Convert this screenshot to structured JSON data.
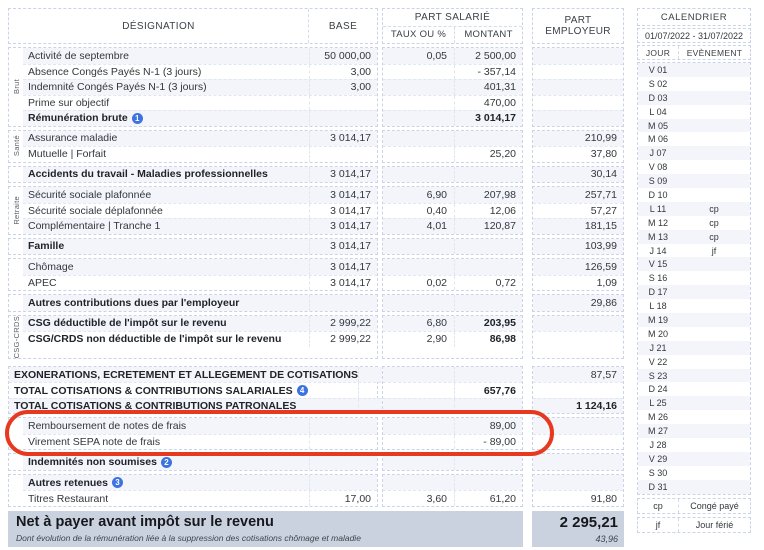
{
  "colors": {
    "row_alt_bg": "#f3f5fb",
    "net_bg": "#cbd2df",
    "badge_blue": "#3d73e0",
    "annotation_red": "#e6391f",
    "dashed_border": "#c9d4ea"
  },
  "table": {
    "headers": {
      "designation": "DÉSIGNATION",
      "base": "BASE",
      "part_salarie": "PART SALARIÉ",
      "taux": "TAUX OU %",
      "montant": "MONTANT",
      "part_employeur": "PART EMPLOYEUR"
    },
    "sections": [
      {
        "group": "Brut",
        "rows": [
          {
            "label": "Activité de septembre",
            "base": "50 000,00",
            "taux": "0,05",
            "montant": "2 500,00",
            "pe": ""
          },
          {
            "label": "Absence Congés Payés N-1 (3 jours)",
            "base": "3,00",
            "taux": "",
            "montant": "- 357,14",
            "pe": ""
          },
          {
            "label": "Indemnité Congés Payés N-1 (3 jours)",
            "base": "3,00",
            "taux": "",
            "montant": "401,31",
            "pe": ""
          },
          {
            "label": "Prime sur objectif",
            "base": "",
            "taux": "",
            "montant": "470,00",
            "pe": ""
          },
          {
            "label": "Rémunération brute",
            "badge": "1",
            "bold": true,
            "vbold": true,
            "base": "",
            "taux": "",
            "montant": "3 014,17",
            "pe": ""
          }
        ]
      },
      {
        "group": "Santé",
        "rows": [
          {
            "label": "Assurance maladie",
            "base": "3 014,17",
            "taux": "",
            "montant": "",
            "pe": "210,99"
          },
          {
            "label": "Mutuelle | Forfait",
            "base": "",
            "taux": "",
            "montant": "25,20",
            "pe": "37,80"
          }
        ]
      },
      {
        "group": "",
        "rows": [
          {
            "label": "Accidents du travail - Maladies professionnelles",
            "bold": true,
            "base": "3 014,17",
            "taux": "",
            "montant": "",
            "pe": "30,14"
          }
        ]
      },
      {
        "group": "Retraite",
        "rows": [
          {
            "label": "Sécurité sociale plafonnée",
            "base": "3 014,17",
            "taux": "6,90",
            "montant": "207,98",
            "pe": "257,71"
          },
          {
            "label": "Sécurité sociale déplafonnée",
            "base": "3 014,17",
            "taux": "0,40",
            "montant": "12,06",
            "pe": "57,27"
          },
          {
            "label": "Complémentaire | Tranche 1",
            "base": "3 014,17",
            "taux": "4,01",
            "montant": "120,87",
            "pe": "181,15"
          }
        ]
      },
      {
        "group": "",
        "rows": [
          {
            "label": "Famille",
            "bold": true,
            "base": "3 014,17",
            "taux": "",
            "montant": "",
            "pe": "103,99"
          }
        ]
      },
      {
        "group": "",
        "rows": [
          {
            "label": "Chômage",
            "base": "3 014,17",
            "taux": "",
            "montant": "",
            "pe": "126,59"
          },
          {
            "label": "APEC",
            "base": "3 014,17",
            "taux": "0,02",
            "montant": "0,72",
            "pe": "1,09"
          }
        ]
      },
      {
        "group": "",
        "rows": [
          {
            "label": "Autres contributions dues par l'employeur",
            "bold": true,
            "base": "",
            "taux": "",
            "montant": "",
            "pe": "29,86"
          }
        ]
      },
      {
        "group": "CSG-CRDS",
        "rows": [
          {
            "label": "CSG déductible de l'impôt sur le revenu",
            "bold": true,
            "vbold": true,
            "base": "2 999,22",
            "taux": "6,80",
            "montant": "203,95",
            "pe": ""
          },
          {
            "label": "CSG/CRDS non déductible de l'impôt sur le revenu",
            "bold": true,
            "vbold": true,
            "base": "2 999,22",
            "taux": "2,90",
            "montant": "86,98",
            "pe": ""
          }
        ]
      },
      {
        "group": "",
        "extra_gap": true,
        "rows": [
          {
            "label": "EXONERATIONS, ECRETEMENT ET ALLEGEMENT DE COTISATIONS",
            "bold": true,
            "base": "",
            "taux": "",
            "montant": "",
            "pe": "87,57"
          },
          {
            "label": "TOTAL COTISATIONS & CONTRIBUTIONS SALARIALES",
            "badge": "4",
            "bold": true,
            "vbold": true,
            "base": "",
            "taux": "",
            "montant": "657,76",
            "pe": ""
          },
          {
            "label": "TOTAL COTISATIONS & CONTRIBUTIONS PATRONALES",
            "bold": true,
            "vbold": true,
            "base": "",
            "taux": "",
            "montant": "",
            "pe": "1 124,16"
          }
        ]
      },
      {
        "group": "",
        "circled": true,
        "rows": [
          {
            "label": "Remboursement de notes de frais",
            "base": "",
            "taux": "",
            "montant": "89,00",
            "pe": ""
          },
          {
            "label": "Virement SEPA note de frais",
            "base": "",
            "taux": "",
            "montant": "- 89,00",
            "pe": ""
          }
        ]
      },
      {
        "group": "",
        "rows": [
          {
            "label": "Indemnités non soumises",
            "badge": "2",
            "bold": true,
            "base": "",
            "taux": "",
            "montant": "",
            "pe": ""
          }
        ]
      },
      {
        "group": "",
        "rows": [
          {
            "label": "Autres retenues",
            "badge": "3",
            "bold": true,
            "base": "",
            "taux": "",
            "montant": "",
            "pe": ""
          },
          {
            "label": "Titres Restaurant",
            "base": "17,00",
            "taux": "3,60",
            "montant": "61,20",
            "pe": "91,80"
          }
        ]
      }
    ],
    "net": {
      "label": "Net à payer avant impôt sur le revenu",
      "value": "2 295,21",
      "note": "Dont évolution de la rémunération liée à la suppression des cotisations chômage et maladie",
      "note_value": "43,96"
    }
  },
  "calendar": {
    "title": "CALENDRIER",
    "range": "01/07/2022 - 31/07/2022",
    "jour_header": "JOUR",
    "evenement_header": "EVÈNEMENT",
    "days": [
      {
        "j": "V 01",
        "e": ""
      },
      {
        "j": "S 02",
        "e": ""
      },
      {
        "j": "D 03",
        "e": ""
      },
      {
        "j": "L 04",
        "e": ""
      },
      {
        "j": "M 05",
        "e": ""
      },
      {
        "j": "M 06",
        "e": ""
      },
      {
        "j": "J 07",
        "e": ""
      },
      {
        "j": "V 08",
        "e": ""
      },
      {
        "j": "S 09",
        "e": ""
      },
      {
        "j": "D 10",
        "e": ""
      },
      {
        "j": "L 11",
        "e": "cp"
      },
      {
        "j": "M 12",
        "e": "cp"
      },
      {
        "j": "M 13",
        "e": "cp"
      },
      {
        "j": "J 14",
        "e": "jf"
      },
      {
        "j": "V 15",
        "e": ""
      },
      {
        "j": "S 16",
        "e": ""
      },
      {
        "j": "D 17",
        "e": ""
      },
      {
        "j": "L 18",
        "e": ""
      },
      {
        "j": "M 19",
        "e": ""
      },
      {
        "j": "M 20",
        "e": ""
      },
      {
        "j": "J 21",
        "e": ""
      },
      {
        "j": "V 22",
        "e": ""
      },
      {
        "j": "S 23",
        "e": ""
      },
      {
        "j": "D 24",
        "e": ""
      },
      {
        "j": "L 25",
        "e": ""
      },
      {
        "j": "M 26",
        "e": ""
      },
      {
        "j": "M 27",
        "e": ""
      },
      {
        "j": "J 28",
        "e": ""
      },
      {
        "j": "V 29",
        "e": ""
      },
      {
        "j": "S 30",
        "e": ""
      },
      {
        "j": "D 31",
        "e": ""
      }
    ],
    "legend": [
      {
        "code": "cp",
        "label": "Congé payé"
      },
      {
        "code": "jf",
        "label": "Jour férié"
      }
    ]
  }
}
